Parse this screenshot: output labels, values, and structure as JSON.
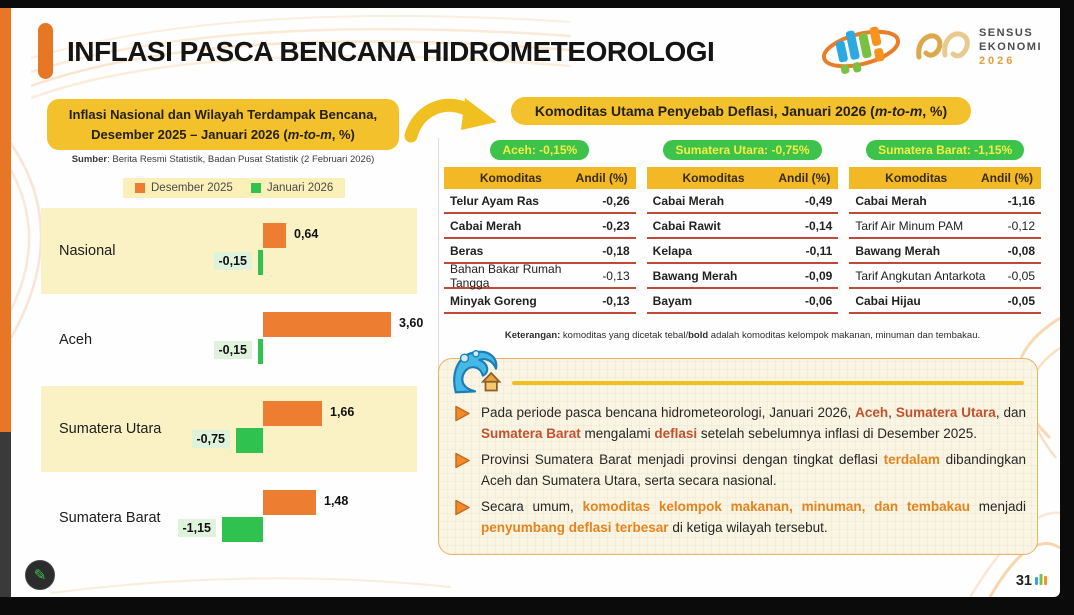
{
  "header": {
    "title": "INFLASI PASCA BENCANA HIDROMETEOROLOGI",
    "logo": {
      "line1": "SENSUS",
      "line2": "EKONOMI",
      "year": "2026"
    }
  },
  "left_panel": {
    "title_segments": [
      {
        "t": "Inflasi Nasional dan Wilayah Terdampak Bencana, Desember 2025 – Januari 2026 ("
      },
      {
        "t": "m-to-m",
        "s": "i"
      },
      {
        "t": ", %)"
      }
    ],
    "source_segments": [
      {
        "t": "Sumber",
        "s": "b"
      },
      {
        "t": ": Berita Resmi Statistik, Badan Pusat Statistik (2 Februari 2026)"
      }
    ],
    "legend": [
      {
        "label": "Desember 2025",
        "color": "#ED7D31"
      },
      {
        "label": "Januari 2026",
        "color": "#2FC24E"
      }
    ]
  },
  "chart_data": {
    "type": "bar",
    "orientation": "horizontal",
    "title": "Inflasi Nasional dan Wilayah Terdampak Bencana, Desember 2025 – Januari 2026 (m-to-m, %)",
    "categories": [
      "Nasional",
      "Aceh",
      "Sumatera Utara",
      "Sumatera Barat"
    ],
    "series": [
      {
        "name": "Desember 2025",
        "color": "#ED7D31",
        "values": [
          0.64,
          3.6,
          1.66,
          1.48
        ],
        "labels": [
          "0,64",
          "3,60",
          "1,66",
          "1,48"
        ]
      },
      {
        "name": "Januari 2026",
        "color": "#2FC24E",
        "values": [
          -0.15,
          -0.15,
          -0.75,
          -1.15
        ],
        "labels": [
          "-0,15",
          "-0,15",
          "-0,75",
          "-1,15"
        ]
      }
    ],
    "highlighted_categories": [
      "Nasional",
      "Sumatera Utara"
    ],
    "xlim": [
      -1.5,
      4.0
    ],
    "grid": false,
    "legend_position": "top"
  },
  "right_panel": {
    "title_segments": [
      {
        "t": "Komoditas Utama Penyebab Deflasi, Januari 2026 ("
      },
      {
        "t": "m-to-m",
        "s": "i"
      },
      {
        "t": ", %)"
      }
    ],
    "columns": [
      {
        "badge": "Aceh: -0,15%",
        "headers": [
          "Komoditas",
          "Andil (%)"
        ],
        "rows": [
          {
            "name": "Telur Ayam Ras",
            "value": "-0,26",
            "bold": true
          },
          {
            "name": "Cabai Merah",
            "value": "-0,23",
            "bold": true
          },
          {
            "name": "Beras",
            "value": "-0,18",
            "bold": true
          },
          {
            "name": "Bahan Bakar Rumah Tangga",
            "value": "-0,13",
            "bold": false
          },
          {
            "name": "Minyak Goreng",
            "value": "-0,13",
            "bold": true
          }
        ]
      },
      {
        "badge": "Sumatera Utara: -0,75%",
        "headers": [
          "Komoditas",
          "Andil (%)"
        ],
        "rows": [
          {
            "name": "Cabai Merah",
            "value": "-0,49",
            "bold": true
          },
          {
            "name": "Cabai Rawit",
            "value": "-0,14",
            "bold": true
          },
          {
            "name": "Kelapa",
            "value": "-0,11",
            "bold": true
          },
          {
            "name": "Bawang Merah",
            "value": "-0,09",
            "bold": true
          },
          {
            "name": "Bayam",
            "value": "-0,06",
            "bold": true
          }
        ]
      },
      {
        "badge": "Sumatera Barat: -1,15%",
        "headers": [
          "Komoditas",
          "Andil (%)"
        ],
        "rows": [
          {
            "name": "Cabai Merah",
            "value": "-1,16",
            "bold": true
          },
          {
            "name": "Tarif Air Minum PAM",
            "value": "-0,12",
            "bold": false
          },
          {
            "name": "Bawang Merah",
            "value": "-0,08",
            "bold": true
          },
          {
            "name": "Tarif Angkutan Antarkota",
            "value": "-0,05",
            "bold": false
          },
          {
            "name": "Cabai Hijau",
            "value": "-0,05",
            "bold": true
          }
        ]
      }
    ],
    "note_segments": [
      {
        "t": "Keterangan:",
        "s": "b"
      },
      {
        "t": " komoditas yang dicetak tebal/"
      },
      {
        "t": "bold",
        "s": "b"
      },
      {
        "t": " adalah komoditas kelompok makanan, minuman dan tembakau."
      }
    ]
  },
  "insights": {
    "bullets": [
      [
        {
          "t": "Pada periode pasca bencana hidrometeorologi, Januari 2026, "
        },
        {
          "t": "Aceh",
          "s": "red"
        },
        {
          "t": ", "
        },
        {
          "t": "Sumatera Utara",
          "s": "red"
        },
        {
          "t": ", dan "
        },
        {
          "t": "Sumatera Barat",
          "s": "red"
        },
        {
          "t": " mengalami "
        },
        {
          "t": "deflasi",
          "s": "red"
        },
        {
          "t": " setelah sebelumnya inflasi di Desember 2025."
        }
      ],
      [
        {
          "t": "Provinsi Sumatera Barat menjadi provinsi dengan tingkat deflasi "
        },
        {
          "t": "terdalam",
          "s": "org"
        },
        {
          "t": " dibandingkan Aceh dan Sumatera Utara, serta secara nasional."
        }
      ],
      [
        {
          "t": "Secara umum, "
        },
        {
          "t": "komoditas kelompok makanan, minuman, dan tembakau",
          "s": "org"
        },
        {
          "t": " menjadi "
        },
        {
          "t": "penyumbang deflasi terbesar",
          "s": "org"
        },
        {
          "t": " di ketiga wilayah tersebut."
        }
      ]
    ]
  },
  "footer": {
    "page_number": "31"
  },
  "colors": {
    "accent_orange": "#E87725",
    "gold": "#F2C12B",
    "table_gold": "#F2B826",
    "badge_green": "#3DC24B",
    "badge_text": "#F4EE44",
    "bar_orange": "#ED7D31",
    "bar_green": "#2FC24E",
    "highlight_band": "#FAF2C4",
    "row_divider": "#BE4B38",
    "insight_bg": "#FAF5E3",
    "red_text": "#C4502E",
    "orange_text": "#E8821C"
  }
}
